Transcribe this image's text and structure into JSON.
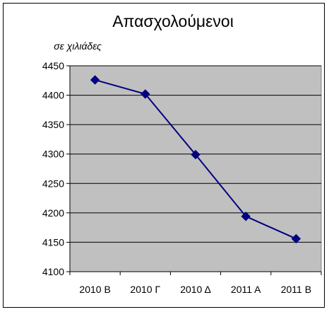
{
  "chart_data": {
    "type": "line",
    "title": "Απασχολούμενοι",
    "unit_label": "σε χιλιάδες",
    "categories": [
      "2010 B",
      "2010 Γ",
      "2010 Δ",
      "2011 A",
      "2011 B"
    ],
    "yticks": [
      "4450",
      "4400",
      "4350",
      "4300",
      "4250",
      "4200",
      "4150",
      "4100"
    ],
    "series": [
      {
        "values": [
          4426,
          4402,
          4299,
          4194,
          4156
        ]
      }
    ],
    "ylim": [
      4100,
      4450
    ],
    "grid": true,
    "legend": "none",
    "colors": {
      "line": "#000080",
      "marker": "#000080",
      "plot_bg": "#c0c0c0",
      "grid": "#000000"
    }
  }
}
